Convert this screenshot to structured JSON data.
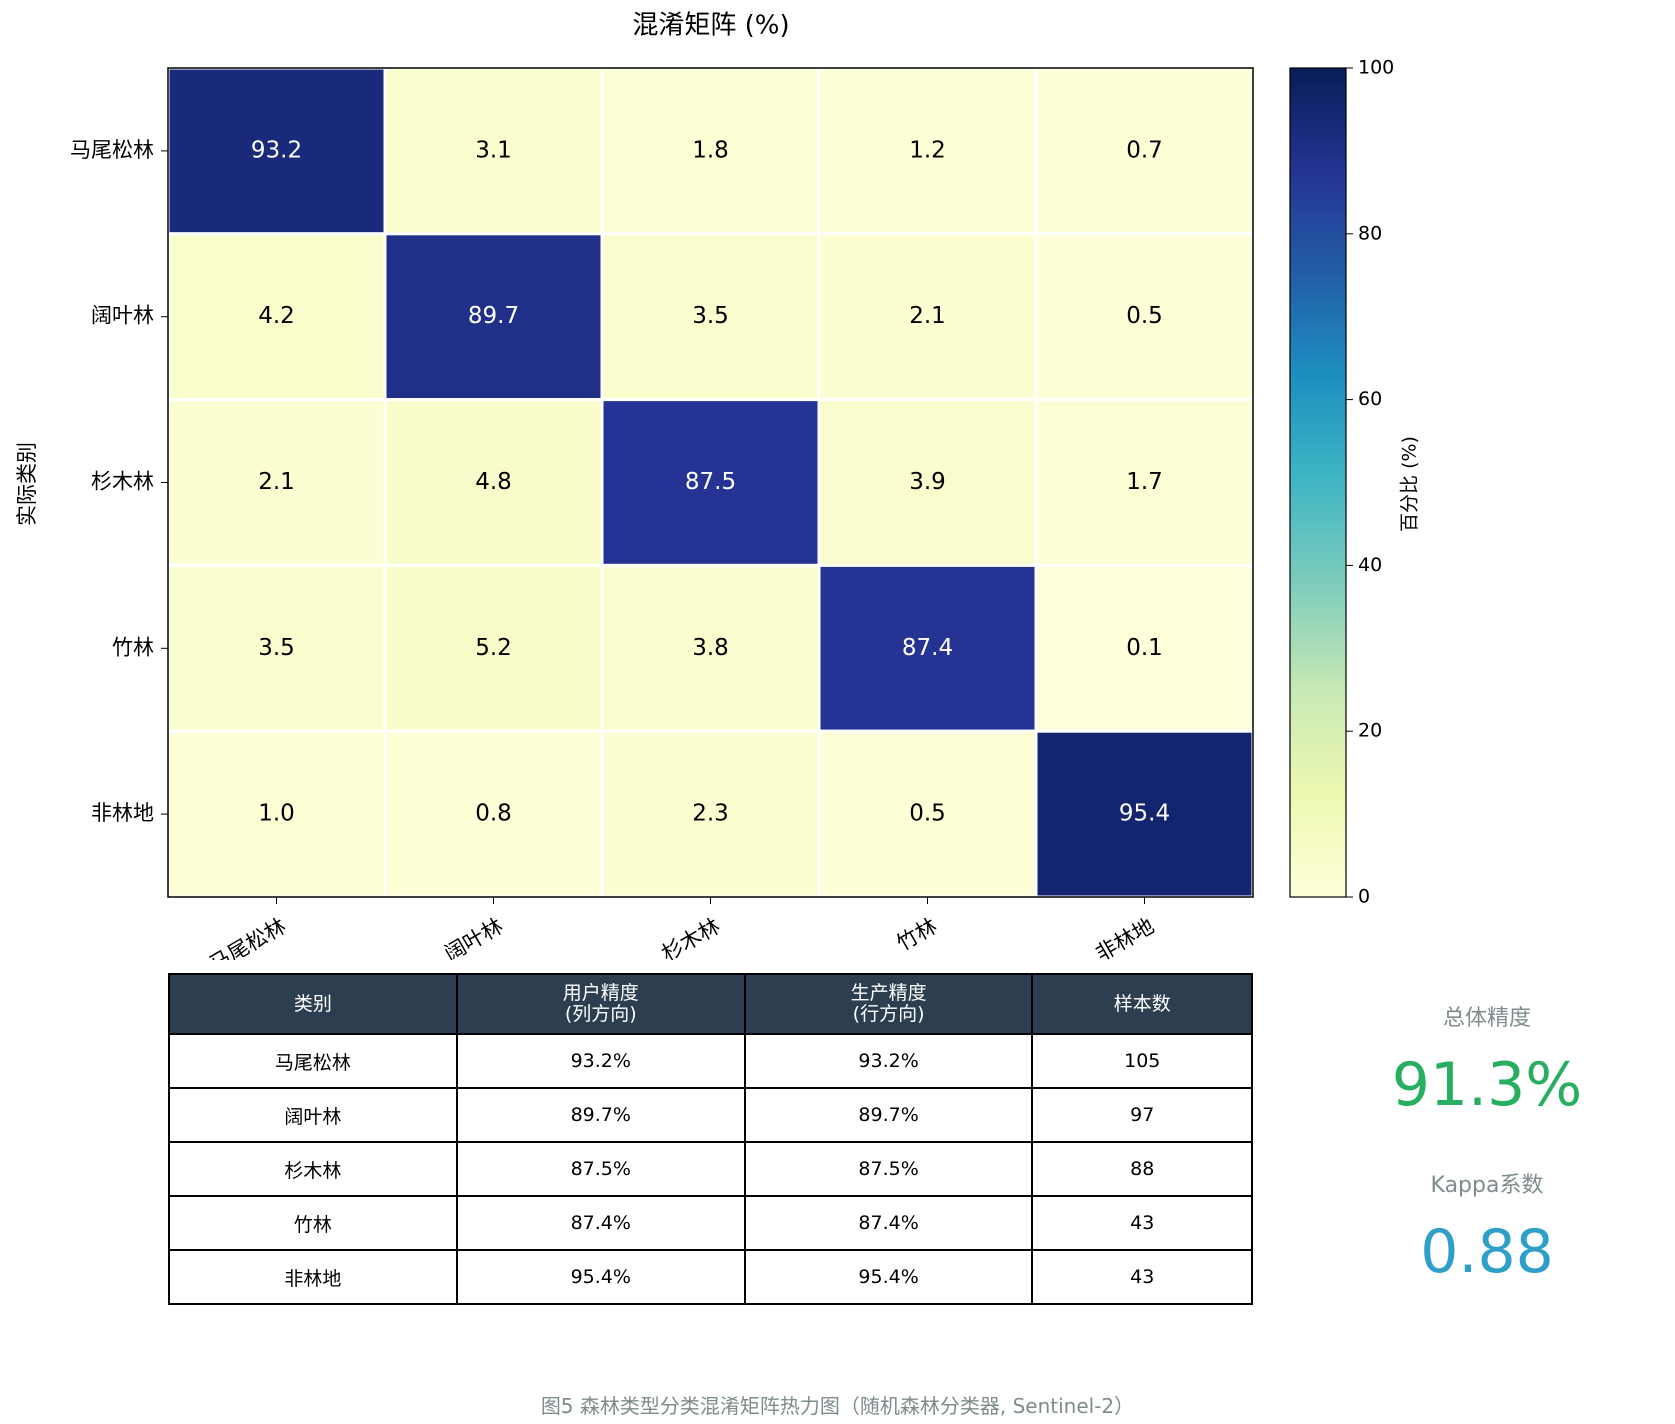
{
  "chart_data": {
    "type": "heatmap",
    "title": "混淆矩阵 (%)",
    "y_label": "实际类别",
    "rows": [
      "马尾松林",
      "阔叶林",
      "杉木林",
      "竹林",
      "非林地"
    ],
    "columns": [
      "马尾松林",
      "阔叶林",
      "杉木林",
      "竹林",
      "非林地"
    ],
    "values": [
      [
        93.2,
        3.1,
        1.8,
        1.2,
        0.7
      ],
      [
        4.2,
        89.7,
        3.5,
        2.1,
        0.5
      ],
      [
        2.1,
        4.8,
        87.5,
        3.9,
        1.7
      ],
      [
        3.5,
        5.2,
        3.8,
        87.4,
        0.1
      ],
      [
        1.0,
        0.8,
        2.3,
        0.5,
        95.4
      ]
    ],
    "value_labels": [
      [
        "93.2",
        "3.1",
        "1.8",
        "1.2",
        "0.7"
      ],
      [
        "4.2",
        "89.7",
        "3.5",
        "2.1",
        "0.5"
      ],
      [
        "2.1",
        "4.8",
        "87.5",
        "3.9",
        "1.7"
      ],
      [
        "3.5",
        "5.2",
        "3.8",
        "87.4",
        "0.1"
      ],
      [
        "1.0",
        "0.8",
        "2.3",
        "0.5",
        "95.4"
      ]
    ],
    "colormap": [
      "#ffffd9",
      "#edf8b1",
      "#c7e9b4",
      "#7fcdbb",
      "#41b6c4",
      "#1d91c0",
      "#225ea8",
      "#253494",
      "#081d58"
    ],
    "clim": [
      0,
      100
    ],
    "colorbar_ticks": [
      0,
      20,
      40,
      60,
      80,
      100
    ],
    "colorbar_label": "百分比 (%)"
  },
  "table": {
    "header": [
      "类别",
      "用户精度\n(列方向)",
      "生产精度\n(行方向)",
      "样本数"
    ],
    "rows": [
      [
        "马尾松林",
        "93.2%",
        "93.2%",
        "105"
      ],
      [
        "阔叶林",
        "89.7%",
        "89.7%",
        "97"
      ],
      [
        "杉木林",
        "87.5%",
        "87.5%",
        "88"
      ],
      [
        "竹林",
        "87.4%",
        "87.4%",
        "43"
      ],
      [
        "非林地",
        "95.4%",
        "95.4%",
        "43"
      ]
    ]
  },
  "stats": {
    "accuracy_label": "总体精度",
    "accuracy": "91.3%",
    "kappa_label": "Kappa系数",
    "kappa": "0.88"
  },
  "caption": "图5 森林类型分类混淆矩阵热力图（随机森林分类器, Sentinel-2）"
}
